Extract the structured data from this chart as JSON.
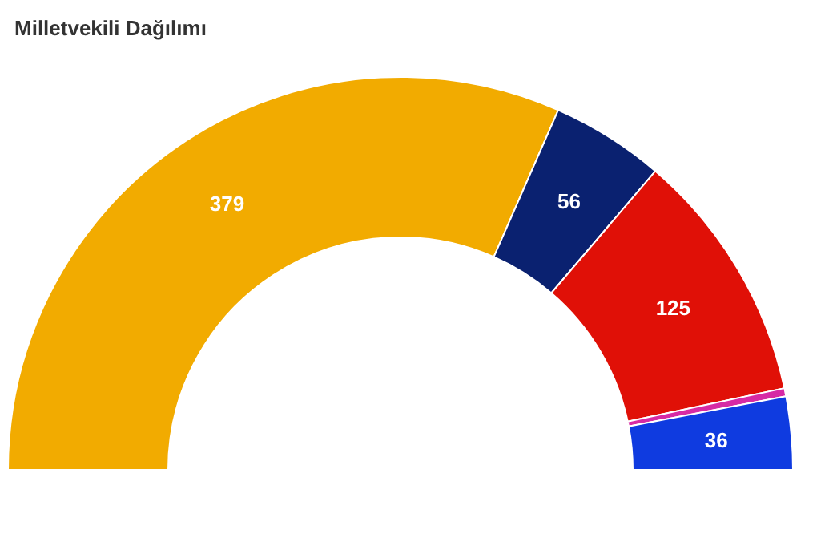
{
  "chart_data": {
    "type": "donut",
    "title": "Milletvekili Dağılımı",
    "categories": [
      null,
      null,
      null,
      null,
      null
    ],
    "values": [
      379,
      56,
      125,
      4,
      36
    ],
    "colors": [
      "#f2ab00",
      "#0a2170",
      "#e01007",
      "#d62aa5",
      "#0f3be0"
    ],
    "value_labels": [
      "379",
      "56",
      "125",
      null,
      "36"
    ],
    "legend": false
  }
}
